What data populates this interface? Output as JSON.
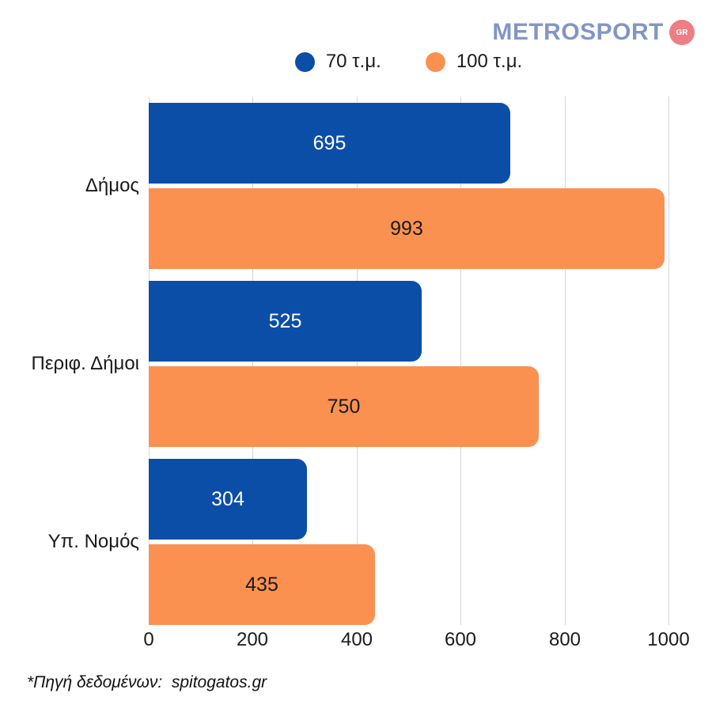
{
  "logo": {
    "text": "METROSPORT",
    "badge": "GR",
    "text_color": "#8296c5",
    "badge_color": "#ee7e85"
  },
  "legend": {
    "items": [
      {
        "label": "70 τ.μ.",
        "color": "#0b4ea8"
      },
      {
        "label": "100 τ.μ.",
        "color": "#fa9150"
      }
    ]
  },
  "chart_data": {
    "type": "bar",
    "orientation": "horizontal",
    "title": "",
    "categories": [
      "Δήμος",
      "Περιφ. Δήμοι",
      "Υπ. Νομός"
    ],
    "series": [
      {
        "name": "70 τ.μ.",
        "color": "#0b4ea8",
        "label_color": "#ffffff",
        "values": [
          695,
          525,
          304
        ]
      },
      {
        "name": "100 τ.μ.",
        "color": "#fa9150",
        "label_color": "#1a1a1a",
        "values": [
          993,
          750,
          435
        ]
      }
    ],
    "xlim": [
      0,
      1000
    ],
    "xticks": [
      0,
      200,
      400,
      600,
      800,
      1000
    ],
    "grid": true,
    "gridline_color": "#d6d6d6",
    "legend_position": "top",
    "value_labels": "inside-center"
  },
  "footer": {
    "source": "*Πηγή δεδομένων:  spitogatos.gr"
  }
}
